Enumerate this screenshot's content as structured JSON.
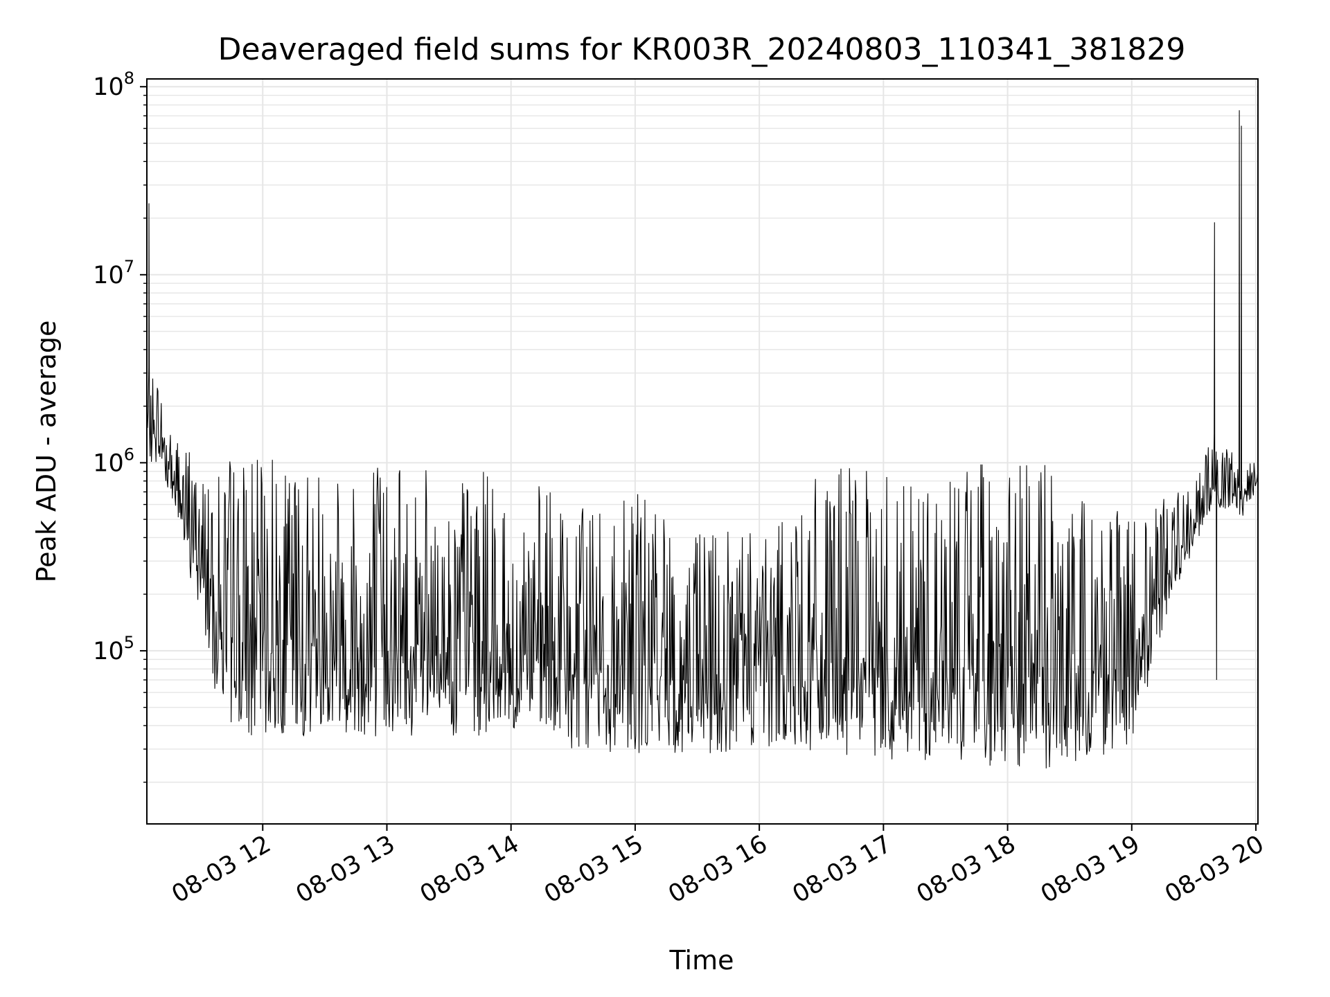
{
  "chart_data": {
    "type": "line",
    "title": "Deaveraged field sums for KR003R_20240803_110341_381829",
    "xlabel": "Time",
    "ylabel": "Peak ADU - average",
    "yscale": "log",
    "ylim": [
      12000,
      110000000
    ],
    "xlim": [
      "2024-08-03 11:04",
      "2024-08-03 20:01"
    ],
    "grid": true,
    "line_color": "#000000",
    "x_ticks": [
      "08-03 12",
      "08-03 13",
      "08-03 14",
      "08-03 15",
      "08-03 16",
      "08-03 17",
      "08-03 18",
      "08-03 19",
      "08-03 20"
    ],
    "y_ticks": [
      {
        "base": "10",
        "exp": "5",
        "value": 100000
      },
      {
        "base": "10",
        "exp": "6",
        "value": 1000000
      },
      {
        "base": "10",
        "exp": "7",
        "value": 10000000
      },
      {
        "base": "10",
        "exp": "8",
        "value": 100000000
      }
    ],
    "series": [
      {
        "x": [
          "2024-08-03 11:04",
          "2024-08-03 11:10",
          "2024-08-03 11:20",
          "2024-08-03 11:30",
          "2024-08-03 11:40",
          "2024-08-03 11:50",
          "2024-08-03 12:00",
          "2024-08-03 12:30",
          "2024-08-03 13:00",
          "2024-08-03 13:30",
          "2024-08-03 14:00",
          "2024-08-03 14:30",
          "2024-08-03 15:00",
          "2024-08-03 15:30",
          "2024-08-03 16:00",
          "2024-08-03 16:30",
          "2024-08-03 17:00",
          "2024-08-03 17:30",
          "2024-08-03 18:00",
          "2024-08-03 18:30",
          "2024-08-03 19:00",
          "2024-08-03 19:20",
          "2024-08-03 19:40",
          "2024-08-03 19:53",
          "2024-08-03 20:01"
        ],
        "low": [
          1000000,
          1000000,
          450000,
          130000,
          45000,
          35000,
          35000,
          35000,
          35000,
          35000,
          35000,
          30000,
          28000,
          28000,
          30000,
          28000,
          25000,
          25000,
          23000,
          24000,
          30000,
          200000,
          600000,
          500000,
          750000
        ],
        "high": [
          3500000,
          2500000,
          1300000,
          1100000,
          1100000,
          1000000,
          1100000,
          1100000,
          1000000,
          1000000,
          900000,
          600000,
          700000,
          450000,
          500000,
          950000,
          950000,
          1000000,
          1000000,
          1000000,
          500000,
          700000,
          1500000,
          1000000,
          1000000
        ],
        "spikes": [
          {
            "x": "2024-08-03 11:05",
            "y": 24000000
          },
          {
            "x": "2024-08-03 19:40",
            "y": 19000000
          },
          {
            "x": "2024-08-03 19:41",
            "y": 70000
          },
          {
            "x": "2024-08-03 19:52",
            "y": 75000000
          },
          {
            "x": "2024-08-03 19:53",
            "y": 62000000
          }
        ]
      }
    ]
  }
}
